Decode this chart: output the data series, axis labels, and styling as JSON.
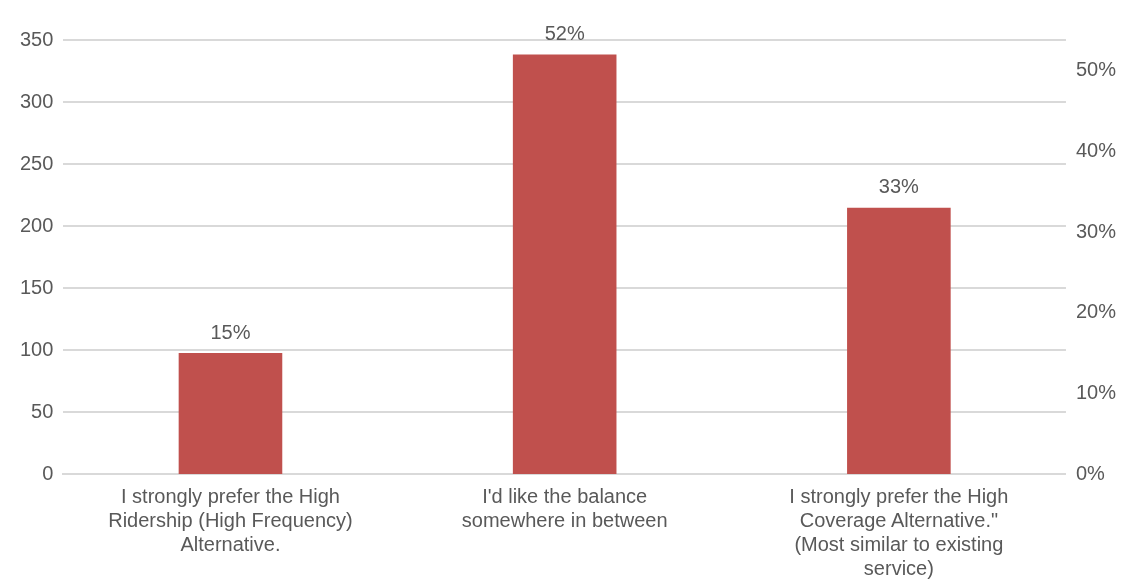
{
  "chart_data": {
    "type": "bar",
    "categories": [
      "I strongly prefer the High Ridership (High Frequency) Alternative.",
      "I'd like the balance somewhere in between",
      "I strongly prefer the High Coverage Alternative.\" (Most similar to existing service)"
    ],
    "series": [
      {
        "color": "#c0504d",
        "values": [
          15,
          52,
          33
        ],
        "axis": "y2",
        "value_labels": [
          "15%",
          "52%",
          "33%"
        ]
      }
    ],
    "ylim": [
      0,
      350
    ],
    "yticks": [
      0,
      50,
      100,
      150,
      200,
      250,
      300,
      350
    ],
    "y2lim": [
      0,
      53.8
    ],
    "y2ticks": [
      {
        "value": 0,
        "label": "0%"
      },
      {
        "value": 10,
        "label": "10%"
      },
      {
        "value": 20,
        "label": "20%"
      },
      {
        "value": 30,
        "label": "30%"
      },
      {
        "value": 40,
        "label": "40%"
      },
      {
        "value": 50,
        "label": "50%"
      }
    ],
    "grid": "y"
  }
}
